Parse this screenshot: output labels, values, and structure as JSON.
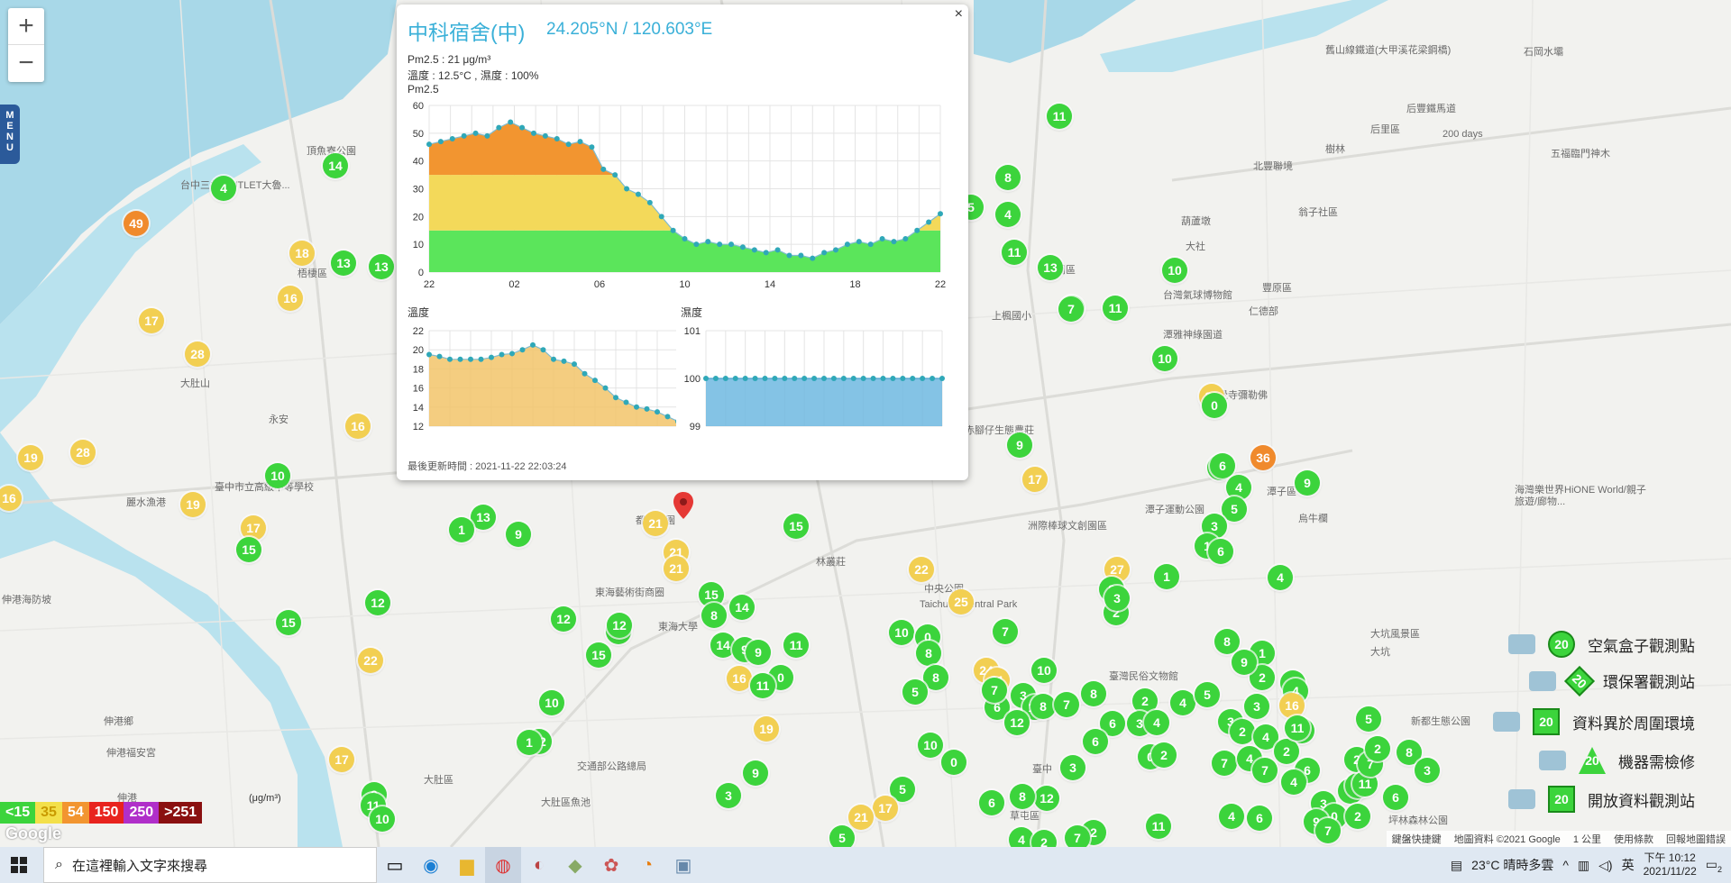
{
  "map": {
    "zoom_in": "+",
    "zoom_out": "−",
    "menu_label": "MENU",
    "place_labels": [
      {
        "text": "台中三井 OUTLET大魯..."
      },
      {
        "text": "頂魚寮公園"
      },
      {
        "text": "梧棲區"
      },
      {
        "text": "永安"
      },
      {
        "text": "臺中市立高級中等學校"
      },
      {
        "text": "麗水漁港"
      },
      {
        "text": "伸港海防坡"
      },
      {
        "text": "伸港鄉"
      },
      {
        "text": "伸港福安宮"
      },
      {
        "text": "伸港"
      },
      {
        "text": "大肚區"
      },
      {
        "text": "東海藝術街商圈"
      },
      {
        "text": "東海大學"
      },
      {
        "text": "交通部公路總局"
      },
      {
        "text": "大肚區魚池"
      },
      {
        "text": "都會公園"
      },
      {
        "text": "林叢莊"
      },
      {
        "text": "中央公園"
      },
      {
        "text": "Taichung Central Park"
      },
      {
        "text": "神岡區"
      },
      {
        "text": "台灣氣球博物館"
      },
      {
        "text": "上楓國小"
      },
      {
        "text": "潭雅神綠園道"
      },
      {
        "text": "赤腳仔生態農莊"
      },
      {
        "text": "洲際棒球文創園區"
      },
      {
        "text": "潭子運動公園"
      },
      {
        "text": "豐原區"
      },
      {
        "text": "北豐聯境"
      },
      {
        "text": "后豐鐵馬道"
      },
      {
        "text": "后里區"
      },
      {
        "text": "葫蘆墩"
      },
      {
        "text": "大社"
      },
      {
        "text": "仁德部"
      },
      {
        "text": "潭子區"
      },
      {
        "text": "烏牛欄"
      },
      {
        "text": "大坑風景區"
      },
      {
        "text": "大坑"
      },
      {
        "text": "新都生態公園"
      },
      {
        "text": "坪林森林公園"
      },
      {
        "text": "海灣樂世界HiONE World/親子旅遊/廊物..."
      },
      {
        "text": "臺灣民俗文物館"
      },
      {
        "text": "臺中"
      },
      {
        "text": "草屯區"
      },
      {
        "text": "五福臨門神木"
      },
      {
        "text": "石岡水壩"
      },
      {
        "text": "舊山線鐵道(大甲溪花梁鋼橋)"
      },
      {
        "text": "200 days"
      },
      {
        "text": "翁子社區"
      },
      {
        "text": "樹林"
      },
      {
        "text": "寶覺寺彌勒佛"
      },
      {
        "text": "大肚山"
      }
    ],
    "markers": [
      {
        "v": "4",
        "c": "g"
      },
      {
        "v": "49",
        "c": "o"
      },
      {
        "v": "14",
        "c": "g"
      },
      {
        "v": "13",
        "c": "g"
      },
      {
        "v": "13",
        "c": "g"
      },
      {
        "v": "18",
        "c": "y"
      },
      {
        "v": "16",
        "c": "y"
      },
      {
        "v": "17",
        "c": "y"
      },
      {
        "v": "28",
        "c": "y"
      },
      {
        "v": "16",
        "c": "y"
      },
      {
        "v": "19",
        "c": "y"
      },
      {
        "v": "28",
        "c": "y"
      },
      {
        "v": "16",
        "c": "y"
      },
      {
        "v": "10",
        "c": "g"
      },
      {
        "v": "19",
        "c": "y"
      },
      {
        "v": "17",
        "c": "y"
      },
      {
        "v": "15",
        "c": "g"
      },
      {
        "v": "13",
        "c": "g"
      },
      {
        "v": "1",
        "c": "g"
      },
      {
        "v": "9",
        "c": "g"
      },
      {
        "v": "15",
        "c": "g"
      },
      {
        "v": "12",
        "c": "g"
      },
      {
        "v": "22",
        "c": "y"
      },
      {
        "v": "12",
        "c": "g"
      },
      {
        "v": "11",
        "c": "g"
      },
      {
        "v": "10",
        "c": "g"
      },
      {
        "v": "1",
        "c": "g"
      },
      {
        "v": "9",
        "c": "g"
      },
      {
        "v": "17",
        "c": "y"
      },
      {
        "v": "11",
        "c": "g"
      },
      {
        "v": "10",
        "c": "g"
      },
      {
        "v": "12",
        "c": "g"
      },
      {
        "v": "12",
        "c": "g"
      },
      {
        "v": "15",
        "c": "g"
      },
      {
        "v": "21",
        "c": "y"
      },
      {
        "v": "21",
        "c": "y"
      },
      {
        "v": "21",
        "c": "y"
      },
      {
        "v": "15",
        "c": "g"
      },
      {
        "v": "8",
        "c": "g"
      },
      {
        "v": "14",
        "c": "g"
      },
      {
        "v": "14",
        "c": "g"
      },
      {
        "v": "9",
        "c": "g"
      },
      {
        "v": "9",
        "c": "g"
      },
      {
        "v": "11",
        "c": "g"
      },
      {
        "v": "0",
        "c": "g"
      },
      {
        "v": "16",
        "c": "y"
      },
      {
        "v": "11",
        "c": "g"
      },
      {
        "v": "19",
        "c": "y"
      },
      {
        "v": "9",
        "c": "g"
      },
      {
        "v": "3",
        "c": "g"
      },
      {
        "v": "15",
        "c": "g"
      },
      {
        "v": "8",
        "c": "g"
      },
      {
        "v": "11",
        "c": "g"
      },
      {
        "v": "4",
        "c": "g"
      },
      {
        "v": "5",
        "c": "g"
      },
      {
        "v": "11",
        "c": "g"
      },
      {
        "v": "13",
        "c": "g"
      },
      {
        "v": "11",
        "c": "g"
      },
      {
        "v": "10",
        "c": "g"
      },
      {
        "v": "10",
        "c": "g"
      },
      {
        "v": "7",
        "c": "g"
      },
      {
        "v": "10",
        "c": "g"
      },
      {
        "v": "22",
        "c": "y"
      },
      {
        "v": "0",
        "c": "g"
      },
      {
        "v": "9",
        "c": "g"
      },
      {
        "v": "17",
        "c": "y"
      },
      {
        "v": "36",
        "c": "o"
      },
      {
        "v": "6",
        "c": "g"
      },
      {
        "v": "6",
        "c": "g"
      },
      {
        "v": "4",
        "c": "g"
      },
      {
        "v": "5",
        "c": "g"
      },
      {
        "v": "3",
        "c": "g"
      },
      {
        "v": "9",
        "c": "g"
      },
      {
        "v": "1",
        "c": "g"
      },
      {
        "v": "6",
        "c": "g"
      },
      {
        "v": "4",
        "c": "g"
      },
      {
        "v": "27",
        "c": "y"
      },
      {
        "v": "1",
        "c": "g"
      },
      {
        "v": "8",
        "c": "g"
      },
      {
        "v": "2",
        "c": "g"
      },
      {
        "v": "3",
        "c": "g"
      },
      {
        "v": "8",
        "c": "g"
      },
      {
        "v": "22",
        "c": "y"
      },
      {
        "v": "10",
        "c": "g"
      },
      {
        "v": "0",
        "c": "g"
      },
      {
        "v": "25",
        "c": "y"
      },
      {
        "v": "7",
        "c": "g"
      },
      {
        "v": "8",
        "c": "g"
      },
      {
        "v": "8",
        "c": "g"
      },
      {
        "v": "5",
        "c": "g"
      },
      {
        "v": "24",
        "c": "y"
      },
      {
        "v": "31",
        "c": "y"
      },
      {
        "v": "10",
        "c": "g"
      },
      {
        "v": "6",
        "c": "g"
      },
      {
        "v": "3",
        "c": "g"
      },
      {
        "v": "10",
        "c": "g"
      },
      {
        "v": "8",
        "c": "g"
      },
      {
        "v": "7",
        "c": "g"
      },
      {
        "v": "12",
        "c": "g"
      },
      {
        "v": "7",
        "c": "g"
      },
      {
        "v": "8",
        "c": "g"
      },
      {
        "v": "2",
        "c": "g"
      },
      {
        "v": "4",
        "c": "g"
      },
      {
        "v": "5",
        "c": "g"
      },
      {
        "v": "6",
        "c": "g"
      },
      {
        "v": "3",
        "c": "g"
      },
      {
        "v": "6",
        "c": "g"
      },
      {
        "v": "4",
        "c": "g"
      },
      {
        "v": "0",
        "c": "g"
      },
      {
        "v": "2",
        "c": "g"
      },
      {
        "v": "1",
        "c": "g"
      },
      {
        "v": "2",
        "c": "g"
      },
      {
        "v": "3",
        "c": "g"
      },
      {
        "v": "4",
        "c": "g"
      },
      {
        "v": "16",
        "c": "y"
      },
      {
        "v": "0",
        "c": "g"
      },
      {
        "v": "3",
        "c": "g"
      },
      {
        "v": "9",
        "c": "g"
      },
      {
        "v": "3",
        "c": "g"
      },
      {
        "v": "2",
        "c": "g"
      },
      {
        "v": "4",
        "c": "g"
      },
      {
        "v": "7",
        "c": "g"
      },
      {
        "v": "4",
        "c": "g"
      },
      {
        "v": "2",
        "c": "g"
      },
      {
        "v": "7",
        "c": "g"
      },
      {
        "v": "1",
        "c": "g"
      },
      {
        "v": "2",
        "c": "g"
      },
      {
        "v": "6",
        "c": "g"
      },
      {
        "v": "3",
        "c": "g"
      },
      {
        "v": "7",
        "c": "g"
      },
      {
        "v": "4",
        "c": "g"
      },
      {
        "v": "11",
        "c": "g"
      },
      {
        "v": "8",
        "c": "g"
      },
      {
        "v": "0",
        "c": "g"
      },
      {
        "v": "7",
        "c": "g"
      },
      {
        "v": "5",
        "c": "g"
      },
      {
        "v": "2",
        "c": "g"
      },
      {
        "v": "3",
        "c": "g"
      },
      {
        "v": "6",
        "c": "g"
      },
      {
        "v": "9",
        "c": "g"
      },
      {
        "v": "2",
        "c": "g"
      },
      {
        "v": "11",
        "c": "g"
      },
      {
        "v": "4",
        "c": "g"
      },
      {
        "v": "6",
        "c": "g"
      },
      {
        "v": "7",
        "c": "g"
      },
      {
        "v": "11",
        "c": "g"
      },
      {
        "v": "2",
        "c": "g"
      },
      {
        "v": "3",
        "c": "g"
      },
      {
        "v": "12",
        "c": "g"
      },
      {
        "v": "8",
        "c": "g"
      },
      {
        "v": "6",
        "c": "g"
      },
      {
        "v": "0",
        "c": "g"
      },
      {
        "v": "10",
        "c": "g"
      },
      {
        "v": "5",
        "c": "g"
      },
      {
        "v": "17",
        "c": "y"
      },
      {
        "v": "21",
        "c": "y"
      },
      {
        "v": "5",
        "c": "g"
      },
      {
        "v": "4",
        "c": "g"
      },
      {
        "v": "2",
        "c": "g"
      },
      {
        "v": "7",
        "c": "g"
      }
    ]
  },
  "popup": {
    "title": "中科宿舍(中)",
    "coords": "24.205°N / 120.603°E",
    "close": "×",
    "pm_line": "Pm2.5 : 21 μg/m³",
    "temp_line": "溫度 : 12.5°C , 濕度 : 100%",
    "chart1_label": "Pm2.5",
    "chart2_label": "溫度",
    "chart3_label": "濕度",
    "updated": "最後更新時間 : 2021-11-22 22:03:24"
  },
  "chart_data": [
    {
      "type": "area",
      "title": "Pm2.5",
      "x_ticks": [
        "22",
        "02",
        "06",
        "10",
        "14",
        "18",
        "22"
      ],
      "y_ticks": [
        0,
        10,
        20,
        30,
        40,
        50,
        60
      ],
      "ylim": [
        0,
        60
      ],
      "values": [
        46,
        47,
        48,
        49,
        50,
        49,
        52,
        54,
        52,
        50,
        49,
        48,
        46,
        47,
        45,
        37,
        35,
        30,
        28,
        25,
        20,
        15,
        12,
        10,
        11,
        10,
        10,
        9,
        8,
        7,
        8,
        6,
        6,
        5,
        7,
        8,
        10,
        11,
        10,
        12,
        11,
        12,
        15,
        18,
        21
      ],
      "bands": [
        {
          "max": 15,
          "color": "#5be55b"
        },
        {
          "max": 35,
          "color": "#f3d95a"
        },
        {
          "max": 54,
          "color": "#f29530"
        }
      ]
    },
    {
      "type": "area",
      "title": "溫度",
      "y_ticks": [
        12,
        14,
        16,
        18,
        20,
        22
      ],
      "ylim": [
        12,
        22
      ],
      "values": [
        19.5,
        19.3,
        19,
        19,
        19,
        19,
        19.2,
        19.5,
        19.6,
        20,
        20.5,
        20,
        19,
        18.8,
        18.5,
        17.5,
        16.8,
        16,
        15,
        14.5,
        14,
        13.8,
        13.5,
        13,
        12.5
      ],
      "color": "#f2c46a"
    },
    {
      "type": "area",
      "title": "濕度",
      "y_ticks": [
        99,
        100,
        101
      ],
      "ylim": [
        99,
        101
      ],
      "values": [
        100,
        100,
        100,
        100,
        100,
        100,
        100,
        100,
        100,
        100,
        100,
        100,
        100,
        100,
        100,
        100,
        100,
        100,
        100,
        100,
        100,
        100,
        100,
        100,
        100
      ],
      "color": "#6fb8e0"
    }
  ],
  "legend": {
    "items": [
      {
        "label": "空氣盒子觀測點",
        "badge": "20"
      },
      {
        "label": "環保署觀測站",
        "badge": "20"
      },
      {
        "label": "資料異於周圍環境",
        "badge": "20"
      },
      {
        "label": "機器需檢修",
        "badge": "20"
      },
      {
        "label": "開放資料觀測站",
        "badge": "20"
      }
    ],
    "scale": [
      {
        "text": "<15",
        "color": "#3cd43c"
      },
      {
        "text": "35",
        "color": "#f3e04a"
      },
      {
        "text": "54",
        "color": "#f29530"
      },
      {
        "text": "150",
        "color": "#e8231e"
      },
      {
        "text": "250",
        "color": "#b02fc9"
      },
      {
        "text": ">251",
        "color": "#8a1010"
      }
    ],
    "unit": "(μg/m³)"
  },
  "attribution": {
    "google": "Google",
    "shortcuts": "鍵盤快捷鍵",
    "mapdata": "地圖資料 ©2021 Google",
    "scale": "1 公里",
    "terms": "使用條款",
    "report": "回報地圖錯誤"
  },
  "taskbar": {
    "search_placeholder": "在這裡輸入文字來搜尋",
    "weather": "23°C 晴時多雲",
    "ime": "英",
    "time": "下午 10:12",
    "date": "2021/11/22",
    "notif": "2"
  }
}
